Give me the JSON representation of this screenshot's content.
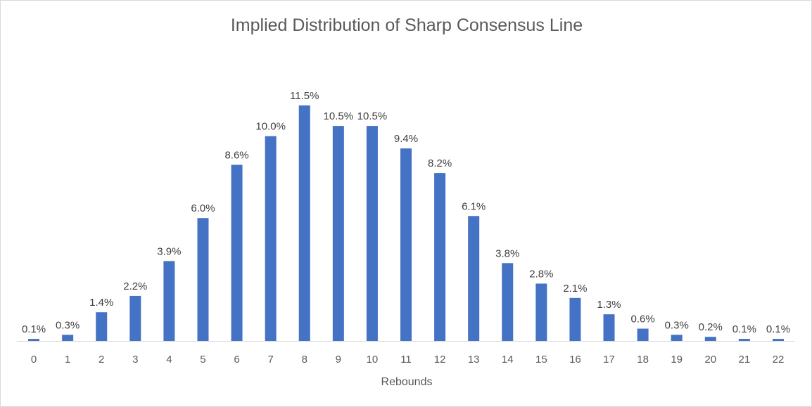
{
  "chart_data": {
    "type": "bar",
    "title": "Implied Distribution of Sharp Consensus Line",
    "xlabel": "Rebounds",
    "ylabel": "",
    "categories": [
      "0",
      "1",
      "2",
      "3",
      "4",
      "5",
      "6",
      "7",
      "8",
      "9",
      "10",
      "11",
      "12",
      "13",
      "14",
      "15",
      "16",
      "17",
      "18",
      "19",
      "20",
      "21",
      "22"
    ],
    "values": [
      0.1,
      0.3,
      1.4,
      2.2,
      3.9,
      6.0,
      8.6,
      10.0,
      11.5,
      10.5,
      10.5,
      9.4,
      8.2,
      6.1,
      3.8,
      2.8,
      2.1,
      1.3,
      0.6,
      0.3,
      0.2,
      0.1,
      0.1
    ],
    "data_labels": [
      "0.1%",
      "0.3%",
      "1.4%",
      "2.2%",
      "3.9%",
      "6.0%",
      "8.6%",
      "10.0%",
      "11.5%",
      "10.5%",
      "10.5%",
      "9.4%",
      "8.2%",
      "6.1%",
      "3.8%",
      "2.8%",
      "2.1%",
      "1.3%",
      "0.6%",
      "0.3%",
      "0.2%",
      "0.1%",
      "0.1%"
    ],
    "unit": "%",
    "ylim": [
      0,
      11.5
    ],
    "grid": false,
    "legend": "none",
    "bar_color": "#4472C4"
  }
}
